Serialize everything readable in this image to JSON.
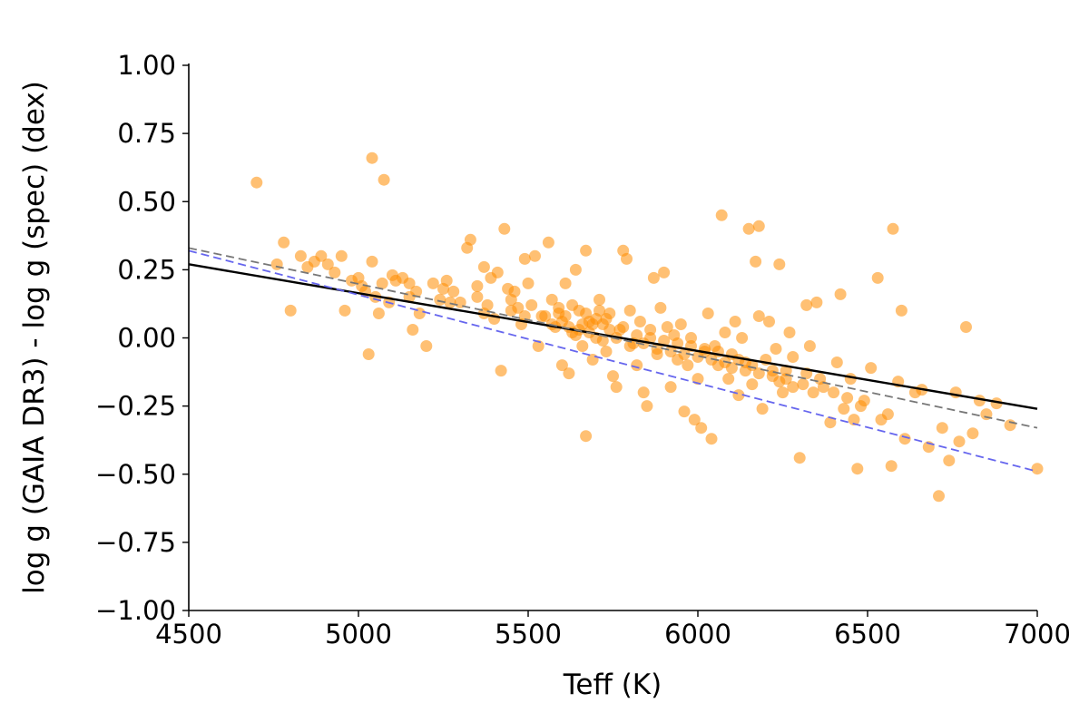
{
  "chart_data": {
    "type": "scatter",
    "title": "",
    "xlabel": "Teff (K)",
    "ylabel": "log g (GAIA DR3) - log g (spec) (dex)",
    "xlim": [
      4500,
      7000
    ],
    "ylim": [
      -1.0,
      1.0
    ],
    "xticks": [
      4500,
      5000,
      5500,
      6000,
      6500,
      7000
    ],
    "xtick_labels": [
      "4500",
      "5000",
      "5500",
      "6000",
      "6500",
      "7000"
    ],
    "yticks": [
      1.0,
      0.75,
      0.5,
      0.25,
      0.0,
      -0.25,
      -0.5,
      -0.75,
      -1.0
    ],
    "ytick_labels": [
      "1.00",
      "0.75",
      "0.50",
      "0.25",
      "0.00",
      "−0.25",
      "−0.50",
      "−0.75",
      "−1.00"
    ],
    "grid": false,
    "point_color": "#ff8c00",
    "point_opacity": 0.55,
    "points": [
      [
        4700,
        0.57
      ],
      [
        5040,
        0.66
      ],
      [
        5075,
        0.58
      ],
      [
        4780,
        0.35
      ],
      [
        4800,
        0.1
      ],
      [
        5030,
        -0.06
      ],
      [
        4760,
        0.27
      ],
      [
        4830,
        0.3
      ],
      [
        4850,
        0.26
      ],
      [
        4870,
        0.28
      ],
      [
        4890,
        0.3
      ],
      [
        4910,
        0.27
      ],
      [
        4930,
        0.24
      ],
      [
        4950,
        0.3
      ],
      [
        4960,
        0.1
      ],
      [
        4980,
        0.21
      ],
      [
        5000,
        0.22
      ],
      [
        5010,
        0.19
      ],
      [
        5020,
        0.17
      ],
      [
        5040,
        0.28
      ],
      [
        5050,
        0.15
      ],
      [
        5060,
        0.09
      ],
      [
        5070,
        0.2
      ],
      [
        5090,
        0.13
      ],
      [
        5110,
        0.21
      ],
      [
        5130,
        0.22
      ],
      [
        5150,
        0.15
      ],
      [
        5160,
        0.03
      ],
      [
        5180,
        0.09
      ],
      [
        5200,
        -0.03
      ],
      [
        5220,
        0.2
      ],
      [
        5240,
        0.14
      ],
      [
        5260,
        0.21
      ],
      [
        5280,
        0.17
      ],
      [
        5300,
        0.13
      ],
      [
        5320,
        0.33
      ],
      [
        5330,
        0.36
      ],
      [
        5350,
        0.19
      ],
      [
        5370,
        0.26
      ],
      [
        5380,
        0.12
      ],
      [
        5390,
        0.22
      ],
      [
        5400,
        0.07
      ],
      [
        5410,
        0.24
      ],
      [
        5420,
        -0.12
      ],
      [
        5430,
        0.4
      ],
      [
        5440,
        0.18
      ],
      [
        5450,
        0.1
      ],
      [
        5460,
        0.17
      ],
      [
        5480,
        0.05
      ],
      [
        5490,
        0.29
      ],
      [
        5500,
        0.2
      ],
      [
        5510,
        0.12
      ],
      [
        5520,
        0.3
      ],
      [
        5530,
        -0.03
      ],
      [
        5540,
        0.08
      ],
      [
        5560,
        0.35
      ],
      [
        5570,
        0.14
      ],
      [
        5580,
        0.04
      ],
      [
        5590,
        0.09
      ],
      [
        5600,
        -0.1
      ],
      [
        5610,
        0.2
      ],
      [
        5620,
        -0.13
      ],
      [
        5630,
        0.02
      ],
      [
        5640,
        0.25
      ],
      [
        5650,
        0.1
      ],
      [
        5660,
        -0.03
      ],
      [
        5670,
        0.32
      ],
      [
        5670,
        -0.36
      ],
      [
        5680,
        0.06
      ],
      [
        5690,
        -0.08
      ],
      [
        5700,
        0.0
      ],
      [
        5710,
        0.14
      ],
      [
        5720,
        0.05
      ],
      [
        5730,
        -0.05
      ],
      [
        5740,
        0.09
      ],
      [
        5750,
        -0.14
      ],
      [
        5760,
        -0.18
      ],
      [
        5770,
        0.03
      ],
      [
        5780,
        0.32
      ],
      [
        5790,
        0.29
      ],
      [
        5800,
        0.1
      ],
      [
        5810,
        -0.02
      ],
      [
        5820,
        -0.1
      ],
      [
        5830,
        0.06
      ],
      [
        5840,
        -0.2
      ],
      [
        5850,
        -0.25
      ],
      [
        5860,
        0.0
      ],
      [
        5870,
        0.22
      ],
      [
        5880,
        -0.06
      ],
      [
        5890,
        0.11
      ],
      [
        5900,
        0.24
      ],
      [
        5910,
        0.04
      ],
      [
        5920,
        -0.18
      ],
      [
        5930,
        0.01
      ],
      [
        5940,
        -0.08
      ],
      [
        5950,
        0.05
      ],
      [
        5960,
        -0.27
      ],
      [
        5970,
        -0.1
      ],
      [
        5980,
        0.0
      ],
      [
        5990,
        -0.3
      ],
      [
        6000,
        -0.15
      ],
      [
        6010,
        -0.33
      ],
      [
        6020,
        -0.05
      ],
      [
        6030,
        0.09
      ],
      [
        6040,
        -0.37
      ],
      [
        6050,
        -0.03
      ],
      [
        6060,
        -0.1
      ],
      [
        6070,
        0.45
      ],
      [
        6080,
        0.02
      ],
      [
        6090,
        -0.15
      ],
      [
        6100,
        -0.06
      ],
      [
        6110,
        0.06
      ],
      [
        6120,
        -0.21
      ],
      [
        6130,
        0.0
      ],
      [
        6140,
        -0.09
      ],
      [
        6150,
        0.4
      ],
      [
        6160,
        -0.17
      ],
      [
        6170,
        0.28
      ],
      [
        6180,
        0.41
      ],
      [
        6180,
        0.08
      ],
      [
        6190,
        -0.26
      ],
      [
        6200,
        -0.08
      ],
      [
        6210,
        0.06
      ],
      [
        6220,
        -0.14
      ],
      [
        6230,
        -0.04
      ],
      [
        6240,
        0.27
      ],
      [
        6250,
        -0.2
      ],
      [
        6260,
        -0.12
      ],
      [
        6270,
        0.02
      ],
      [
        6280,
        -0.07
      ],
      [
        6300,
        -0.44
      ],
      [
        6310,
        -0.17
      ],
      [
        6320,
        0.12
      ],
      [
        6330,
        -0.03
      ],
      [
        6350,
        0.13
      ],
      [
        6370,
        -0.18
      ],
      [
        6390,
        -0.31
      ],
      [
        6410,
        -0.09
      ],
      [
        6420,
        0.16
      ],
      [
        6430,
        -0.26
      ],
      [
        6450,
        -0.15
      ],
      [
        6460,
        -0.3
      ],
      [
        6470,
        -0.48
      ],
      [
        6490,
        -0.23
      ],
      [
        6510,
        -0.11
      ],
      [
        6530,
        0.22
      ],
      [
        6540,
        -0.3
      ],
      [
        6560,
        -0.28
      ],
      [
        6570,
        -0.47
      ],
      [
        6575,
        0.4
      ],
      [
        6590,
        -0.16
      ],
      [
        6600,
        0.1
      ],
      [
        6610,
        -0.37
      ],
      [
        6640,
        -0.2
      ],
      [
        6660,
        -0.19
      ],
      [
        6680,
        -0.4
      ],
      [
        6710,
        -0.58
      ],
      [
        6720,
        -0.33
      ],
      [
        6740,
        -0.45
      ],
      [
        6760,
        -0.2
      ],
      [
        6770,
        -0.38
      ],
      [
        6790,
        0.04
      ],
      [
        6810,
        -0.35
      ],
      [
        6830,
        -0.23
      ],
      [
        6850,
        -0.28
      ],
      [
        6880,
        -0.24
      ],
      [
        6920,
        -0.32
      ],
      [
        7000,
        -0.48
      ],
      [
        5600,
        0.06
      ],
      [
        5620,
        0.04
      ],
      [
        5640,
        0.01
      ],
      [
        5660,
        0.05
      ],
      [
        5680,
        0.02
      ],
      [
        5700,
        0.07
      ],
      [
        5720,
        -0.01
      ],
      [
        5740,
        0.03
      ],
      [
        5760,
        0.0
      ],
      [
        5780,
        0.04
      ],
      [
        5800,
        -0.03
      ],
      [
        5820,
        0.01
      ],
      [
        5840,
        -0.02
      ],
      [
        5860,
        0.03
      ],
      [
        5880,
        -0.04
      ],
      [
        5900,
        -0.01
      ],
      [
        5920,
        -0.05
      ],
      [
        5940,
        -0.02
      ],
      [
        5960,
        -0.06
      ],
      [
        5980,
        -0.03
      ],
      [
        6000,
        -0.07
      ],
      [
        6020,
        -0.04
      ],
      [
        6040,
        -0.08
      ],
      [
        6060,
        -0.05
      ],
      [
        6080,
        -0.09
      ],
      [
        6100,
        -0.11
      ],
      [
        6120,
        -0.08
      ],
      [
        6140,
        -0.12
      ],
      [
        6160,
        -0.1
      ],
      [
        6180,
        -0.13
      ],
      [
        5550,
        0.08
      ],
      [
        5570,
        0.05
      ],
      [
        5590,
        0.11
      ],
      [
        5610,
        0.08
      ],
      [
        5630,
        0.12
      ],
      [
        5650,
        0.03
      ],
      [
        5670,
        0.09
      ],
      [
        5690,
        0.05
      ],
      [
        5710,
        0.1
      ],
      [
        5730,
        0.07
      ],
      [
        5450,
        0.14
      ],
      [
        5470,
        0.11
      ],
      [
        5490,
        0.08
      ],
      [
        5350,
        0.15
      ],
      [
        5370,
        0.09
      ],
      [
        5250,
        0.18
      ],
      [
        5270,
        0.13
      ],
      [
        5150,
        0.2
      ],
      [
        5170,
        0.17
      ],
      [
        5100,
        0.23
      ],
      [
        6220,
        -0.12
      ],
      [
        6240,
        -0.16
      ],
      [
        6260,
        -0.15
      ],
      [
        6280,
        -0.18
      ],
      [
        6320,
        -0.13
      ],
      [
        6340,
        -0.2
      ],
      [
        6360,
        -0.15
      ],
      [
        6400,
        -0.2
      ],
      [
        6440,
        -0.22
      ],
      [
        6480,
        -0.25
      ]
    ],
    "lines": [
      {
        "style": "solid",
        "color": "#000000",
        "points": [
          [
            4500,
            0.27
          ],
          [
            7000,
            -0.26
          ]
        ]
      },
      {
        "style": "dashed",
        "color": "#777777",
        "points": [
          [
            4500,
            0.33
          ],
          [
            7000,
            -0.33
          ]
        ]
      },
      {
        "style": "dashed",
        "color": "#6666ee",
        "points": [
          [
            4500,
            0.32
          ],
          [
            7000,
            -0.49
          ]
        ]
      }
    ]
  }
}
